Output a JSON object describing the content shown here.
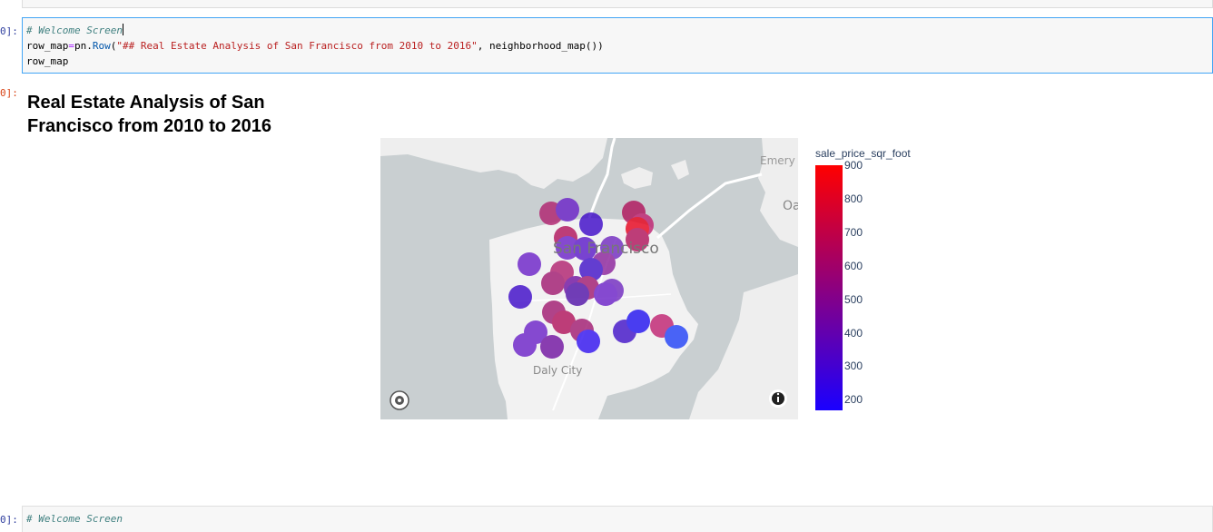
{
  "notebook": {
    "cell1": {
      "prompt": "0]:",
      "code_lines": [
        {
          "comment": "# Welcome Screen"
        },
        {
          "var": "row_map",
          "op": "=",
          "obj": "pn.",
          "fn": "Row",
          "open": "(",
          "str": "\"## Real Estate Analysis of San Francisco from 2010 to 2016\"",
          "rest": ", neighborhood_map())"
        },
        {
          "plain": "row_map"
        }
      ]
    },
    "output1": {
      "prompt": "0]:",
      "heading": "Real Estate Analysis of San Francisco from 2010 to 2016"
    },
    "cell2": {
      "prompt": "0]:",
      "comment": "# Welcome Screen"
    }
  },
  "map": {
    "labels": {
      "city": "San Francisco",
      "south": "Daly City",
      "east_top": "Emery",
      "east_mid": "Oa"
    },
    "icons": [
      "mapbox-logo-icon",
      "info-icon"
    ]
  },
  "colorbar": {
    "title": "sale_price_sqr_foot",
    "ticks": [
      "900",
      "800",
      "700",
      "600",
      "500",
      "400",
      "300",
      "200"
    ],
    "colors": {
      "high": "#ff0000",
      "low": "#1a00ff"
    }
  }
}
